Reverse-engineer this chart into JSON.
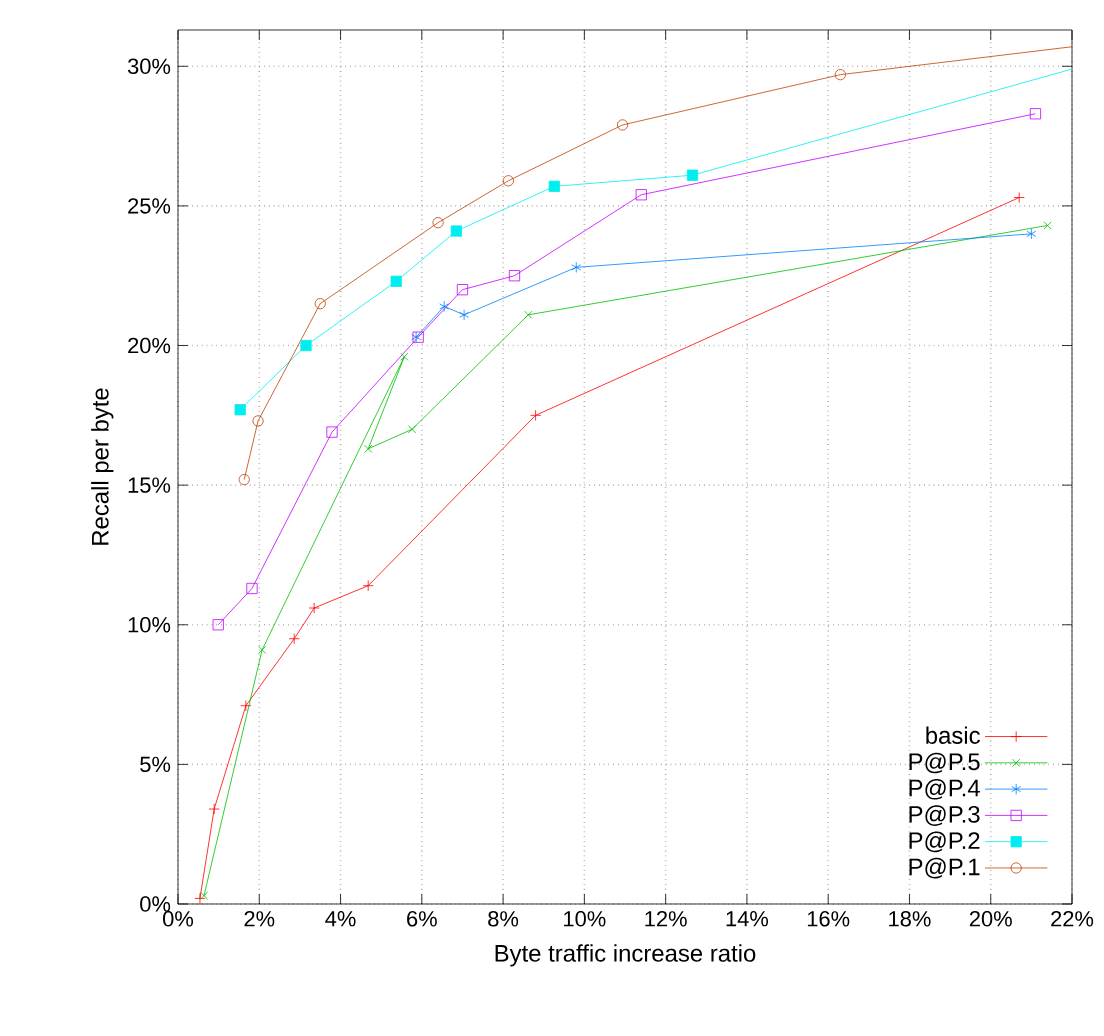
{
  "chart_data": {
    "type": "line",
    "xlabel": "Byte traffic increase ratio",
    "ylabel": "Recall per byte",
    "xlim": [
      0,
      22
    ],
    "ylim": [
      0,
      31.3
    ],
    "xticks": [
      {
        "value": 0,
        "label": "0%"
      },
      {
        "value": 2,
        "label": "2%"
      },
      {
        "value": 4,
        "label": "4%"
      },
      {
        "value": 6,
        "label": "6%"
      },
      {
        "value": 8,
        "label": "8%"
      },
      {
        "value": 10,
        "label": "10%"
      },
      {
        "value": 12,
        "label": "12%"
      },
      {
        "value": 14,
        "label": "14%"
      },
      {
        "value": 16,
        "label": "16%"
      },
      {
        "value": 18,
        "label": "18%"
      },
      {
        "value": 20,
        "label": "20%"
      },
      {
        "value": 22,
        "label": "22%"
      }
    ],
    "yticks": [
      {
        "value": 0,
        "label": "0%"
      },
      {
        "value": 5,
        "label": "5%"
      },
      {
        "value": 10,
        "label": "10%"
      },
      {
        "value": 15,
        "label": "15%"
      },
      {
        "value": 20,
        "label": "20%"
      },
      {
        "value": 25,
        "label": "25%"
      },
      {
        "value": 30,
        "label": "30%"
      }
    ],
    "grid": true,
    "legend": "bottom right",
    "line_style": "solid",
    "series": [
      {
        "name": "basic",
        "color": "#ff0000",
        "marker": "plus",
        "x": [
          0.54,
          0.89,
          1.67,
          2.86,
          3.35,
          4.68,
          8.8,
          20.7
        ],
        "values": [
          0.2,
          3.4,
          7.1,
          9.5,
          10.6,
          11.4,
          17.5,
          25.3
        ]
      },
      {
        "name": "P@P.5",
        "color": "#00c000",
        "marker": "x",
        "x": [
          0.64,
          2.07,
          5.57,
          4.68,
          5.76,
          8.62,
          21.4
        ],
        "values": [
          0.3,
          9.1,
          19.6,
          16.3,
          17.0,
          21.1,
          24.3
        ]
      },
      {
        "name": "P@P.4",
        "color": "#0080ff",
        "marker": "cross",
        "x": [
          5.86,
          6.55,
          7.04,
          9.8,
          21.0
        ],
        "values": [
          20.3,
          21.4,
          21.1,
          22.8,
          24.0
        ]
      },
      {
        "name": "P@P.3",
        "color": "#c000ff",
        "marker": "square",
        "x": [
          0.99,
          1.82,
          3.79,
          5.91,
          7.0,
          8.28,
          11.4,
          21.1
        ],
        "values": [
          10.0,
          11.3,
          16.9,
          20.3,
          22.0,
          22.5,
          25.4,
          28.3
        ]
      },
      {
        "name": "P@P.2",
        "color": "#00eeee",
        "marker": "square",
        "x": [
          1.53,
          3.15,
          5.37,
          6.85,
          9.26,
          12.66,
          22
        ],
        "values": [
          17.7,
          20.0,
          22.3,
          24.1,
          25.7,
          26.1,
          29.9
        ]
      },
      {
        "name": "P@P.1",
        "color": "#c04000",
        "marker": "circle",
        "x": [
          1.63,
          1.97,
          3.5,
          6.4,
          8.13,
          10.94,
          16.3,
          22
        ],
        "values": [
          15.2,
          17.3,
          21.5,
          24.4,
          25.9,
          27.9,
          29.7,
          30.7
        ]
      }
    ]
  }
}
